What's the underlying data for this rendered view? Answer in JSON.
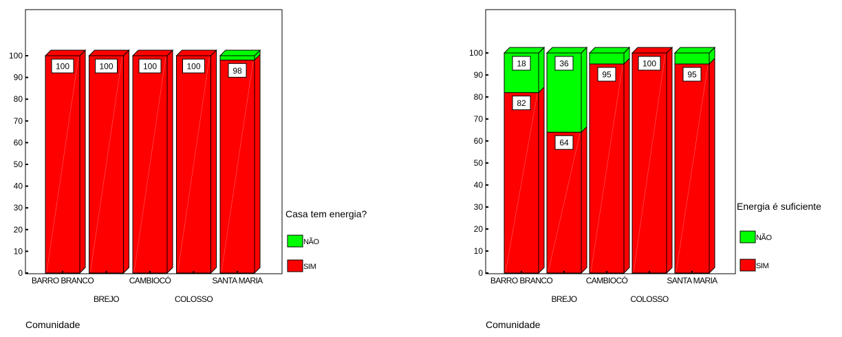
{
  "colors": {
    "sim": "#ff0000",
    "nao": "#00ff00",
    "outline": "#000000",
    "label_bg": "#ffffff"
  },
  "chart_data": [
    {
      "type": "bar",
      "stacked": true,
      "three_d": true,
      "categories": [
        "BARRO BRANCO",
        "BREJO",
        "CAMBIOCÓ",
        "COLOSSO",
        "SANTA MARIA"
      ],
      "series": [
        {
          "name": "SIM",
          "values": [
            100,
            100,
            100,
            100,
            98
          ],
          "color": "#ff0000"
        },
        {
          "name": "NÃO",
          "values": [
            0,
            0,
            0,
            0,
            2
          ],
          "color": "#00ff00"
        }
      ],
      "data_labels": [
        {
          "category": "BARRO BRANCO",
          "series": "SIM",
          "text": "100"
        },
        {
          "category": "BREJO",
          "series": "SIM",
          "text": "100"
        },
        {
          "category": "CAMBIOCÓ",
          "series": "SIM",
          "text": "100"
        },
        {
          "category": "COLOSSO",
          "series": "SIM",
          "text": "100"
        },
        {
          "category": "SANTA MARIA",
          "series": "SIM",
          "text": "98"
        }
      ],
      "xlabel": "Comunidade",
      "ylabel": "",
      "ylim": [
        0,
        100
      ],
      "yticks": [
        0,
        10,
        20,
        30,
        40,
        50,
        60,
        70,
        80,
        90,
        100
      ],
      "legend": {
        "title": "Casa tem energia?",
        "items": [
          "NÃO",
          "SIM"
        ],
        "placement": "right"
      }
    },
    {
      "type": "bar",
      "stacked": true,
      "three_d": true,
      "categories": [
        "BARRO BRANCO",
        "BREJO",
        "CAMBIOCÓ",
        "COLOSSO",
        "SANTA MARIA"
      ],
      "series": [
        {
          "name": "SIM",
          "values": [
            82,
            64,
            95,
            100,
            95
          ],
          "color": "#ff0000"
        },
        {
          "name": "NÃO",
          "values": [
            18,
            36,
            5,
            0,
            5
          ],
          "color": "#00ff00"
        }
      ],
      "data_labels": [
        {
          "category": "BARRO BRANCO",
          "series": "NÃO",
          "text": "18"
        },
        {
          "category": "BARRO BRANCO",
          "series": "SIM",
          "text": "82"
        },
        {
          "category": "BREJO",
          "series": "NÃO",
          "text": "36"
        },
        {
          "category": "BREJO",
          "series": "SIM",
          "text": "64"
        },
        {
          "category": "CAMBIOCÓ",
          "series": "SIM",
          "text": "95"
        },
        {
          "category": "COLOSSO",
          "series": "SIM",
          "text": "100"
        },
        {
          "category": "SANTA MARIA",
          "series": "SIM",
          "text": "95"
        }
      ],
      "xlabel": "Comunidade",
      "ylabel": "",
      "ylim": [
        0,
        100
      ],
      "yticks": [
        0,
        10,
        20,
        30,
        40,
        50,
        60,
        70,
        80,
        90,
        100
      ],
      "legend": {
        "title": "Energia é suficiente",
        "items": [
          "NÃO",
          "SIM"
        ],
        "placement": "right"
      }
    }
  ]
}
